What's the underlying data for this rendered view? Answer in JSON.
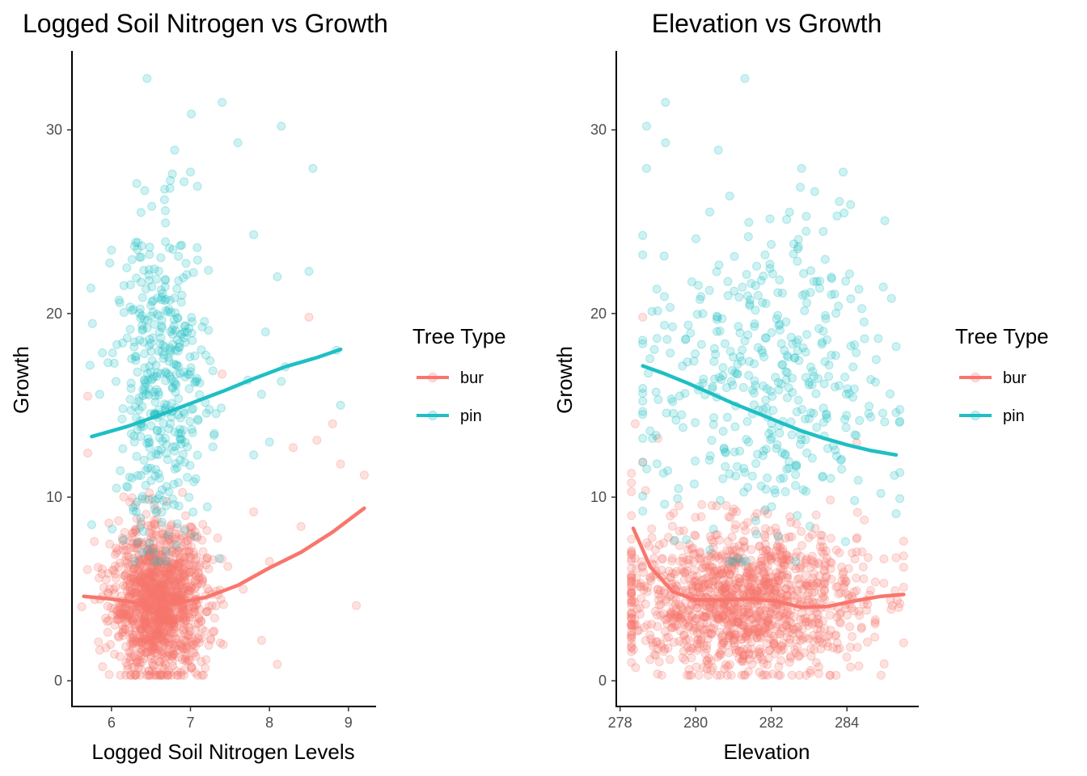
{
  "colors": {
    "bur": "#F8766D",
    "pin": "#1FBFC4"
  },
  "chart_data": [
    {
      "type": "scatter",
      "title": "Logged Soil Nitrogen vs Growth",
      "xlabel": "Logged Soil Nitrogen Levels",
      "ylabel": "Growth",
      "xlim": [
        5.5,
        9.35
      ],
      "ylim": [
        -1.4,
        34.3
      ],
      "x_ticks": [
        6,
        7,
        8,
        9
      ],
      "y_ticks": [
        0,
        10,
        20,
        30
      ],
      "grid": false,
      "legend_position": "right",
      "legend_title": "Tree Type",
      "series": [
        {
          "name": "bur",
          "color": "#F8766D",
          "cloud": {
            "x_center": 6.6,
            "x_sd": 0.3,
            "x_range": [
              5.6,
              9.2
            ],
            "y_center": 4.3,
            "y_sd": 2.0,
            "y_range": [
              0.3,
              19.8
            ],
            "count": 1300
          },
          "outliers": [
            [
              5.7,
              15.5
            ],
            [
              8.5,
              19.8
            ],
            [
              8.8,
              14.0
            ],
            [
              9.2,
              11.2
            ],
            [
              9.1,
              4.1
            ],
            [
              7.4,
              16.7
            ],
            [
              8.3,
              12.7
            ],
            [
              8.6,
              13.1
            ],
            [
              8.9,
              11.8
            ],
            [
              5.7,
              12.4
            ],
            [
              7.8,
              9.2
            ],
            [
              8.4,
              8.4
            ],
            [
              8.0,
              6.5
            ],
            [
              7.9,
              2.2
            ],
            [
              8.1,
              0.9
            ]
          ],
          "smooth": {
            "x": [
              5.65,
              6.0,
              6.4,
              6.8,
              7.2,
              7.6,
              8.0,
              8.4,
              8.8,
              9.2
            ],
            "y": [
              4.6,
              4.45,
              4.2,
              4.2,
              4.55,
              5.2,
              6.15,
              7.0,
              8.1,
              9.4
            ]
          }
        },
        {
          "name": "pin",
          "color": "#1FBFC4",
          "cloud": {
            "x_center": 6.65,
            "x_sd": 0.3,
            "x_range": [
              5.7,
              8.9
            ],
            "y_center": 16.0,
            "y_sd": 4.5,
            "y_range": [
              6.5,
              33.0
            ],
            "count": 420
          },
          "outliers": [
            [
              6.45,
              32.8
            ],
            [
              7.4,
              31.5
            ],
            [
              8.15,
              30.2
            ],
            [
              7.6,
              29.3
            ],
            [
              8.55,
              27.9
            ],
            [
              6.8,
              28.9
            ],
            [
              7.0,
              27.7
            ],
            [
              7.8,
              24.3
            ],
            [
              8.5,
              22.3
            ],
            [
              8.1,
              22.0
            ],
            [
              7.95,
              19.0
            ],
            [
              8.85,
              18.0
            ],
            [
              8.9,
              15.0
            ],
            [
              8.15,
              16.3
            ],
            [
              8.2,
              17.1
            ],
            [
              8.0,
              13.0
            ],
            [
              7.9,
              15.6
            ],
            [
              5.85,
              15.6
            ],
            [
              5.75,
              8.5
            ],
            [
              7.8,
              12.3
            ]
          ],
          "smooth": {
            "x": [
              5.75,
              6.2,
              6.6,
              7.0,
              7.4,
              7.8,
              8.2,
              8.6,
              8.9
            ],
            "y": [
              13.3,
              13.85,
              14.45,
              15.1,
              15.75,
              16.45,
              17.1,
              17.6,
              18.05
            ]
          }
        }
      ]
    },
    {
      "type": "scatter",
      "title": "Elevation vs Growth",
      "xlabel": "Elevation",
      "ylabel": "Growth",
      "xlim": [
        277.9,
        285.9
      ],
      "ylim": [
        -1.4,
        34.3
      ],
      "x_ticks": [
        278,
        280,
        282,
        284
      ],
      "y_ticks": [
        0,
        10,
        20,
        30
      ],
      "grid": false,
      "legend_position": "right",
      "legend_title": "Tree Type",
      "series": [
        {
          "name": "bur",
          "color": "#F8766D",
          "cloud": {
            "x_center": 281.2,
            "x_sd": 1.6,
            "x_range": [
              278.3,
              285.5
            ],
            "y_center": 4.4,
            "y_sd": 2.0,
            "y_range": [
              0.3,
              19.8
            ],
            "count": 1300
          },
          "outliers": [
            [
              278.6,
              19.8
            ],
            [
              278.4,
              14.0
            ],
            [
              279.0,
              13.2
            ],
            [
              278.6,
              11.9
            ],
            [
              278.3,
              11.3
            ],
            [
              278.3,
              10.3
            ],
            [
              285.5,
              7.6
            ],
            [
              285.3,
              6.7
            ],
            [
              285.2,
              4.1
            ]
          ],
          "smooth": {
            "x": [
              278.35,
              278.8,
              279.4,
              280.0,
              280.7,
              281.4,
              282.1,
              282.8,
              283.5,
              284.2,
              284.9,
              285.5
            ],
            "y": [
              8.3,
              6.2,
              4.85,
              4.4,
              4.4,
              4.45,
              4.35,
              4.0,
              4.05,
              4.35,
              4.6,
              4.7
            ]
          }
        },
        {
          "name": "pin",
          "color": "#1FBFC4",
          "cloud": {
            "x_center": 281.8,
            "x_sd": 1.6,
            "x_range": [
              278.6,
              285.4
            ],
            "y_center": 16.0,
            "y_sd": 4.5,
            "y_range": [
              6.5,
              33.0
            ],
            "count": 420
          },
          "outliers": [
            [
              281.3,
              32.8
            ],
            [
              279.2,
              31.5
            ],
            [
              278.7,
              30.2
            ],
            [
              279.2,
              29.3
            ],
            [
              278.7,
              27.9
            ],
            [
              280.6,
              28.9
            ],
            [
              282.8,
              27.9
            ],
            [
              283.9,
              27.7
            ],
            [
              283.8,
              26.1
            ],
            [
              280.9,
              26.4
            ],
            [
              284.1,
              20.8
            ],
            [
              284.2,
              18.3
            ],
            [
              285.3,
              18.2
            ],
            [
              285.3,
              14.6
            ],
            [
              285.0,
              14.1
            ],
            [
              285.3,
              9.1
            ]
          ],
          "smooth": {
            "x": [
              278.6,
              279.2,
              279.8,
              280.4,
              281.0,
              281.6,
              282.2,
              282.8,
              283.4,
              284.0,
              284.6,
              285.3
            ],
            "y": [
              17.15,
              16.7,
              16.2,
              15.65,
              15.1,
              14.6,
              14.1,
              13.6,
              13.2,
              12.85,
              12.55,
              12.3
            ]
          }
        }
      ]
    }
  ]
}
